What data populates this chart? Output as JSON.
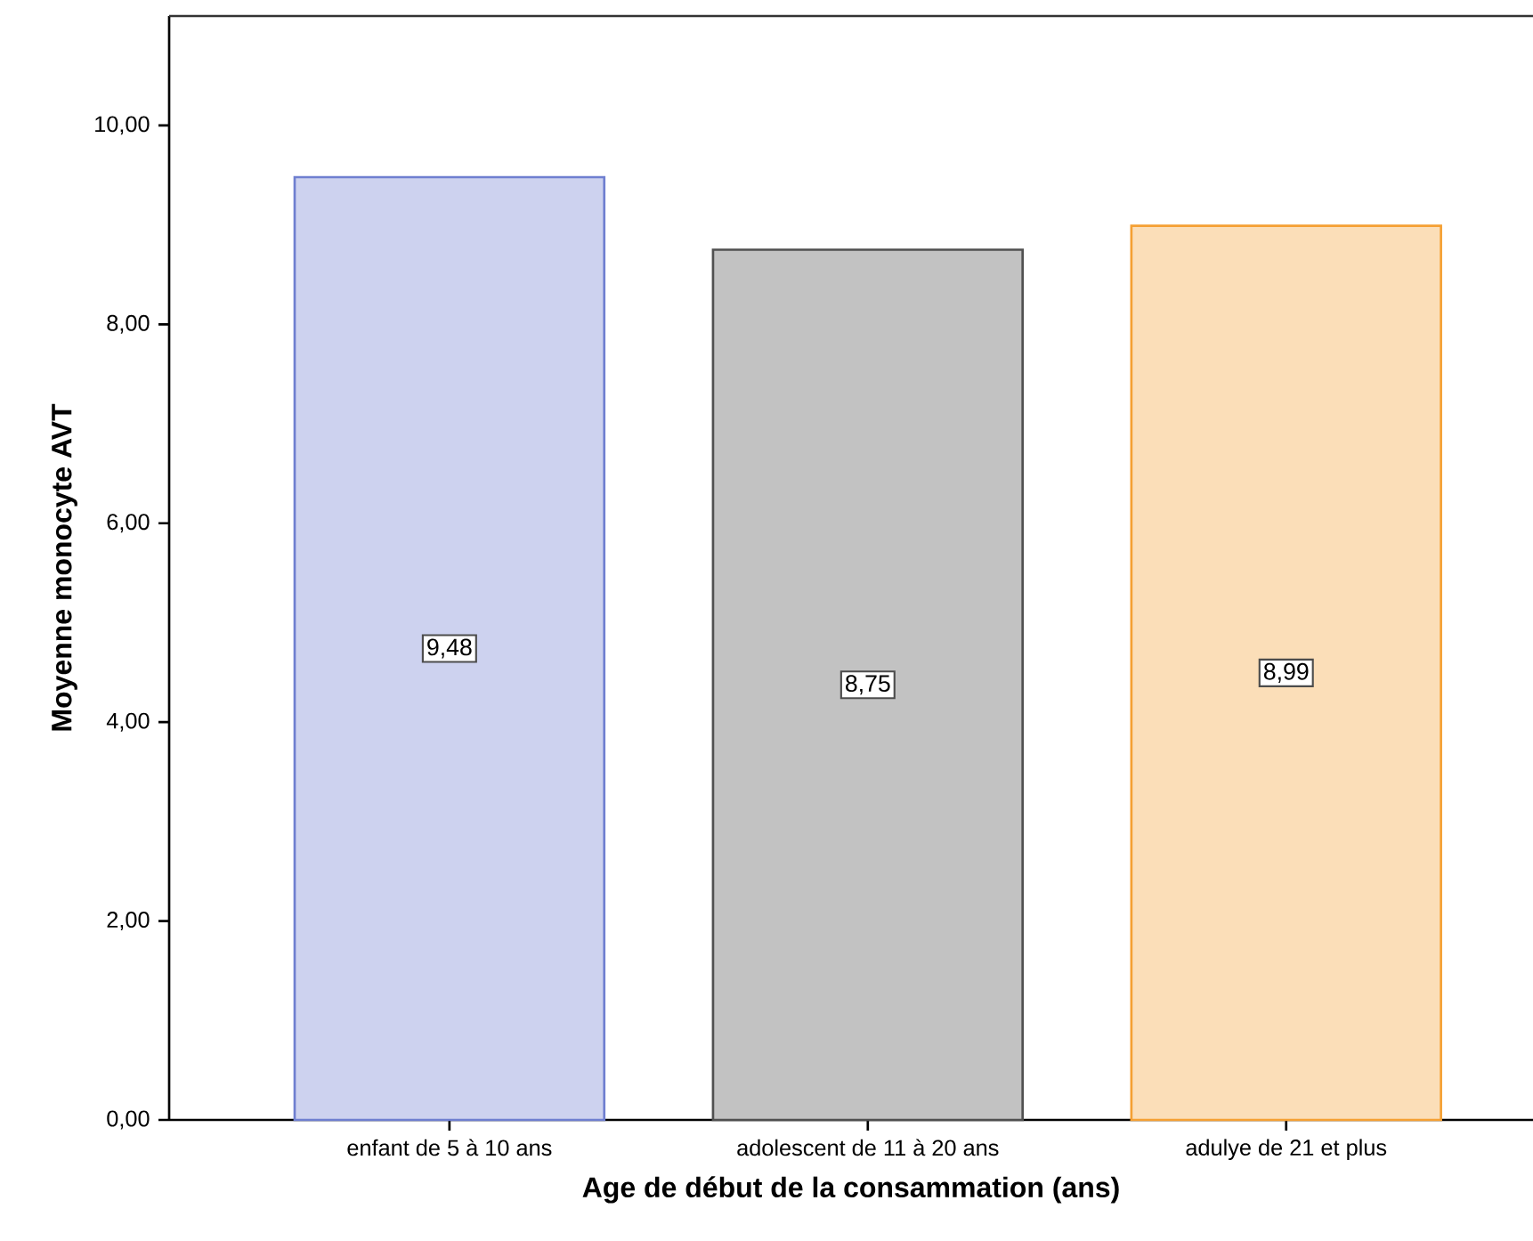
{
  "chart_data": {
    "type": "bar",
    "xlabel": "Age de début de la consammation (ans)",
    "ylabel": "Moyenne monocyte AVT",
    "categories": [
      "enfant de 5 à 10 ans",
      "adolescent de 11 à 20 ans",
      "adulye de 21 et plus"
    ],
    "values": [
      9.48,
      8.75,
      8.99
    ],
    "colors": [
      "#6f7fd0",
      "#505050",
      "#f5a033"
    ],
    "value_labels": [
      "9,48",
      "8,75",
      "8,99"
    ],
    "ylim": [
      0,
      11.1
    ],
    "yticks": [
      {
        "value": 0,
        "label": "0,00"
      },
      {
        "value": 2,
        "label": "2,00"
      },
      {
        "value": 4,
        "label": "4,00"
      },
      {
        "value": 6,
        "label": "6,00"
      },
      {
        "value": 8,
        "label": "8,00"
      },
      {
        "value": 10,
        "label": "10,00"
      }
    ]
  }
}
